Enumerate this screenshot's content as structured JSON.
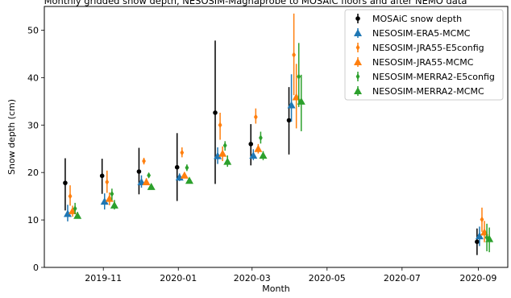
{
  "chart_data": {
    "type": "scatter",
    "title": "Monthly gridded snow depth, NESOSIM-Magnaprobe to MOSAiC floors and after NEMO data",
    "xlabel": "Month",
    "ylabel": "Snow depth (cm)",
    "ylim": [
      0,
      55
    ],
    "xlim": [
      "2019-09-14",
      "2020-09-25"
    ],
    "x_ticks": [
      {
        "date": "2019-11-01",
        "label": "2019-11"
      },
      {
        "date": "2020-01-01",
        "label": "2020-01"
      },
      {
        "date": "2020-03-01",
        "label": "2020-03"
      },
      {
        "date": "2020-05-01",
        "label": "2020-05"
      },
      {
        "date": "2020-07-01",
        "label": "2020-07"
      },
      {
        "date": "2020-09-01",
        "label": "2020-09"
      }
    ],
    "y_ticks": [
      0,
      10,
      20,
      30,
      40,
      50
    ],
    "legend_position": "top-right",
    "months": [
      "2019-10",
      "2019-11",
      "2019-12",
      "2020-01",
      "2020-02",
      "2020-03",
      "2020-04",
      "2020-09"
    ],
    "series": [
      {
        "name": "MOSAiC snow depth",
        "color": "#000000",
        "marker": "circle",
        "points": [
          {
            "x": "2019-10-01",
            "y": 17.8,
            "low": 12.0,
            "high": 23.0
          },
          {
            "x": "2019-10-31",
            "y": 19.3,
            "low": 15.5,
            "high": 22.9
          },
          {
            "x": "2019-11-30",
            "y": 20.2,
            "low": 15.4,
            "high": 25.2
          },
          {
            "x": "2019-12-31",
            "y": 21.1,
            "low": 14.0,
            "high": 28.3
          },
          {
            "x": "2020-01-31",
            "y": 32.6,
            "low": 17.6,
            "high": 47.8
          },
          {
            "x": "2020-02-29",
            "y": 26.0,
            "low": 21.5,
            "high": 30.2
          },
          {
            "x": "2020-03-31",
            "y": 31.0,
            "low": 23.8,
            "high": 38.0
          },
          {
            "x": "2020-08-31",
            "y": 5.4,
            "low": 2.6,
            "high": 8.2
          }
        ]
      },
      {
        "name": "NESOSIM-ERA5-MCMC",
        "color": "#1f77b4",
        "marker": "triangle",
        "points": [
          {
            "x": "2019-10-03",
            "y": 11.3,
            "low": 9.7,
            "high": 13.2
          },
          {
            "x": "2019-11-02",
            "y": 13.9,
            "low": 12.2,
            "high": 15.6
          },
          {
            "x": "2019-12-02",
            "y": 18.0,
            "low": 16.8,
            "high": 19.4
          },
          {
            "x": "2020-01-02",
            "y": 19.0,
            "low": 18.2,
            "high": 19.8
          },
          {
            "x": "2020-02-02",
            "y": 23.5,
            "low": 21.8,
            "high": 25.3
          },
          {
            "x": "2020-03-02",
            "y": 23.6,
            "low": 22.6,
            "high": 24.9
          },
          {
            "x": "2020-04-02",
            "y": 34.2,
            "low": 30.7,
            "high": 40.7
          },
          {
            "x": "2020-09-02",
            "y": 6.6,
            "low": 4.5,
            "high": 8.6
          }
        ]
      },
      {
        "name": "NESOSIM-JRA55-E5config",
        "color": "#ff7f0e",
        "marker": "diamond",
        "points": [
          {
            "x": "2019-10-05",
            "y": 15.0,
            "low": 13.0,
            "high": 17.3
          },
          {
            "x": "2019-11-04",
            "y": 18.0,
            "low": 15.7,
            "high": 20.4
          },
          {
            "x": "2019-12-04",
            "y": 22.4,
            "low": 21.7,
            "high": 23.1
          },
          {
            "x": "2020-01-04",
            "y": 24.2,
            "low": 23.2,
            "high": 25.3
          },
          {
            "x": "2020-02-04",
            "y": 30.0,
            "low": 26.9,
            "high": 32.6
          },
          {
            "x": "2020-03-04",
            "y": 31.7,
            "low": 30.3,
            "high": 33.5
          },
          {
            "x": "2020-04-04",
            "y": 44.8,
            "low": 36.3,
            "high": 53.5
          },
          {
            "x": "2020-09-04",
            "y": 10.1,
            "low": 7.5,
            "high": 12.6
          }
        ]
      },
      {
        "name": "NESOSIM-JRA55-MCMC",
        "color": "#ff7f0e",
        "marker": "triangle",
        "points": [
          {
            "x": "2019-10-07",
            "y": 11.9,
            "low": 10.7,
            "high": 13.0
          },
          {
            "x": "2019-11-06",
            "y": 14.5,
            "low": 13.1,
            "high": 15.8
          },
          {
            "x": "2019-12-06",
            "y": 18.0,
            "low": 17.4,
            "high": 18.8
          },
          {
            "x": "2020-01-06",
            "y": 19.4,
            "low": 18.8,
            "high": 20.0
          },
          {
            "x": "2020-02-06",
            "y": 24.0,
            "low": 22.4,
            "high": 25.5
          },
          {
            "x": "2020-03-06",
            "y": 25.0,
            "low": 24.0,
            "high": 26.0
          },
          {
            "x": "2020-04-06",
            "y": 35.9,
            "low": 29.3,
            "high": 42.9
          },
          {
            "x": "2020-09-06",
            "y": 7.4,
            "low": 5.3,
            "high": 9.8
          }
        ]
      },
      {
        "name": "NESOSIM-MERRA2-E5config",
        "color": "#2ca02c",
        "marker": "diamond",
        "points": [
          {
            "x": "2019-10-09",
            "y": 12.4,
            "low": 11.2,
            "high": 13.6
          },
          {
            "x": "2019-11-08",
            "y": 15.5,
            "low": 14.2,
            "high": 16.6
          },
          {
            "x": "2019-12-08",
            "y": 19.4,
            "low": 19.0,
            "high": 19.9
          },
          {
            "x": "2020-01-08",
            "y": 21.0,
            "low": 20.3,
            "high": 21.7
          },
          {
            "x": "2020-02-08",
            "y": 25.7,
            "low": 24.6,
            "high": 26.6
          },
          {
            "x": "2020-03-08",
            "y": 27.3,
            "low": 26.1,
            "high": 28.6
          },
          {
            "x": "2020-04-08",
            "y": 40.2,
            "low": 33.8,
            "high": 47.3
          },
          {
            "x": "2020-09-08",
            "y": 6.3,
            "low": 3.4,
            "high": 9.2
          }
        ]
      },
      {
        "name": "NESOSIM-MERRA2-MCMC",
        "color": "#2ca02c",
        "marker": "triangle",
        "points": [
          {
            "x": "2019-10-11",
            "y": 10.9,
            "low": 10.3,
            "high": 11.7
          },
          {
            "x": "2019-11-10",
            "y": 13.1,
            "low": 12.2,
            "high": 14.2
          },
          {
            "x": "2019-12-10",
            "y": 17.0,
            "low": 16.4,
            "high": 17.5
          },
          {
            "x": "2020-01-10",
            "y": 18.3,
            "low": 17.8,
            "high": 18.8
          },
          {
            "x": "2020-02-10",
            "y": 22.3,
            "low": 21.2,
            "high": 23.6
          },
          {
            "x": "2020-03-10",
            "y": 23.6,
            "low": 22.6,
            "high": 24.5
          },
          {
            "x": "2020-04-10",
            "y": 35.0,
            "low": 28.7,
            "high": 40.6
          },
          {
            "x": "2020-09-10",
            "y": 6.0,
            "low": 3.2,
            "high": 8.4
          }
        ]
      }
    ]
  }
}
